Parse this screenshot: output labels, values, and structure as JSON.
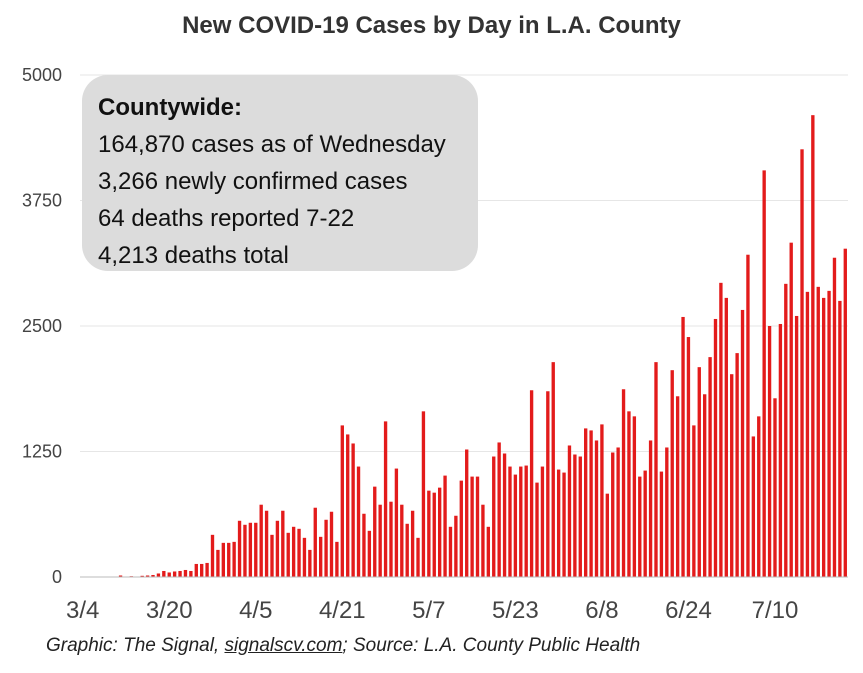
{
  "title": "New COVID-19 Cases by Day in L.A. County",
  "infobox": {
    "heading": "Countywide:",
    "lines": [
      "164,870 cases as of Wednesday",
      "3,266 newly confirmed cases",
      "64 deaths reported 7-22",
      "4,213 deaths total"
    ]
  },
  "footer": {
    "prefix": "Graphic: The Signal, ",
    "link": "signalscv.com",
    "suffix": "; Source: L.A. County Public Health"
  },
  "colors": {
    "bar": "#e31b1b",
    "grid": "#e6e6e6",
    "box": "#dcdcdc"
  },
  "chart_data": {
    "type": "bar",
    "title": "New COVID-19 Cases by Day in L.A. County",
    "x_start": "3/4",
    "x_end": "7/22",
    "x_ticks": [
      "3/4",
      "3/20",
      "4/5",
      "4/21",
      "5/7",
      "5/23",
      "6/8",
      "6/24",
      "7/10"
    ],
    "y_ticks": [
      0,
      1250,
      2500,
      3750,
      5000
    ],
    "ylim": [
      0,
      5000
    ],
    "grid": true,
    "series": [
      {
        "values": [
          0,
          0,
          0,
          0,
          0,
          0,
          0,
          15,
          5,
          8,
          0,
          12,
          15,
          20,
          35,
          60,
          45,
          55,
          60,
          70,
          60,
          130,
          130,
          140,
          420,
          270,
          340,
          340,
          350,
          560,
          520,
          540,
          540,
          720,
          660,
          420,
          560,
          660,
          440,
          500,
          480,
          390,
          270,
          690,
          400,
          570,
          650,
          350,
          1510,
          1420,
          1330,
          1100,
          630,
          460,
          900,
          720,
          1550,
          750,
          1080,
          720,
          530,
          660,
          390,
          1650,
          860,
          840,
          890,
          1010,
          500,
          610,
          960,
          1270,
          1000,
          1000,
          720,
          500,
          1200,
          1340,
          1230,
          1100,
          1020,
          1100,
          1110,
          1860,
          940,
          1100,
          1850,
          2140,
          1070,
          1040,
          1310,
          1220,
          1200,
          1480,
          1460,
          1360,
          1520,
          830,
          1240,
          1290,
          1870,
          1650,
          1600,
          1000,
          1060,
          1360,
          2140,
          1050,
          1290,
          2060,
          1800,
          2590,
          2390,
          1510,
          2090,
          1820,
          2190,
          2570,
          2930,
          2780,
          2020,
          2230,
          2660,
          3210,
          1400,
          1600,
          4050,
          2500,
          1780,
          2520,
          2920,
          3330,
          2600,
          4260,
          2840,
          4600,
          2890,
          2780,
          2850,
          3180,
          2750,
          3270
        ]
      }
    ]
  }
}
